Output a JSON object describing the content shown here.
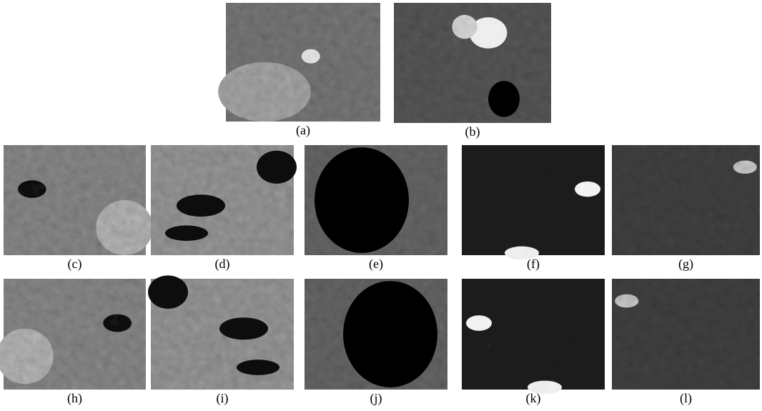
{
  "figure": {
    "panels": [
      {
        "label": "(a)"
      },
      {
        "label": "(b)"
      },
      {
        "label": "(c)"
      },
      {
        "label": "(d)"
      },
      {
        "label": "(e)"
      },
      {
        "label": "(f)"
      },
      {
        "label": "(g)"
      },
      {
        "label": "(h)"
      },
      {
        "label": "(i)"
      },
      {
        "label": "(j)"
      },
      {
        "label": "(k)"
      },
      {
        "label": "(l)"
      }
    ]
  }
}
